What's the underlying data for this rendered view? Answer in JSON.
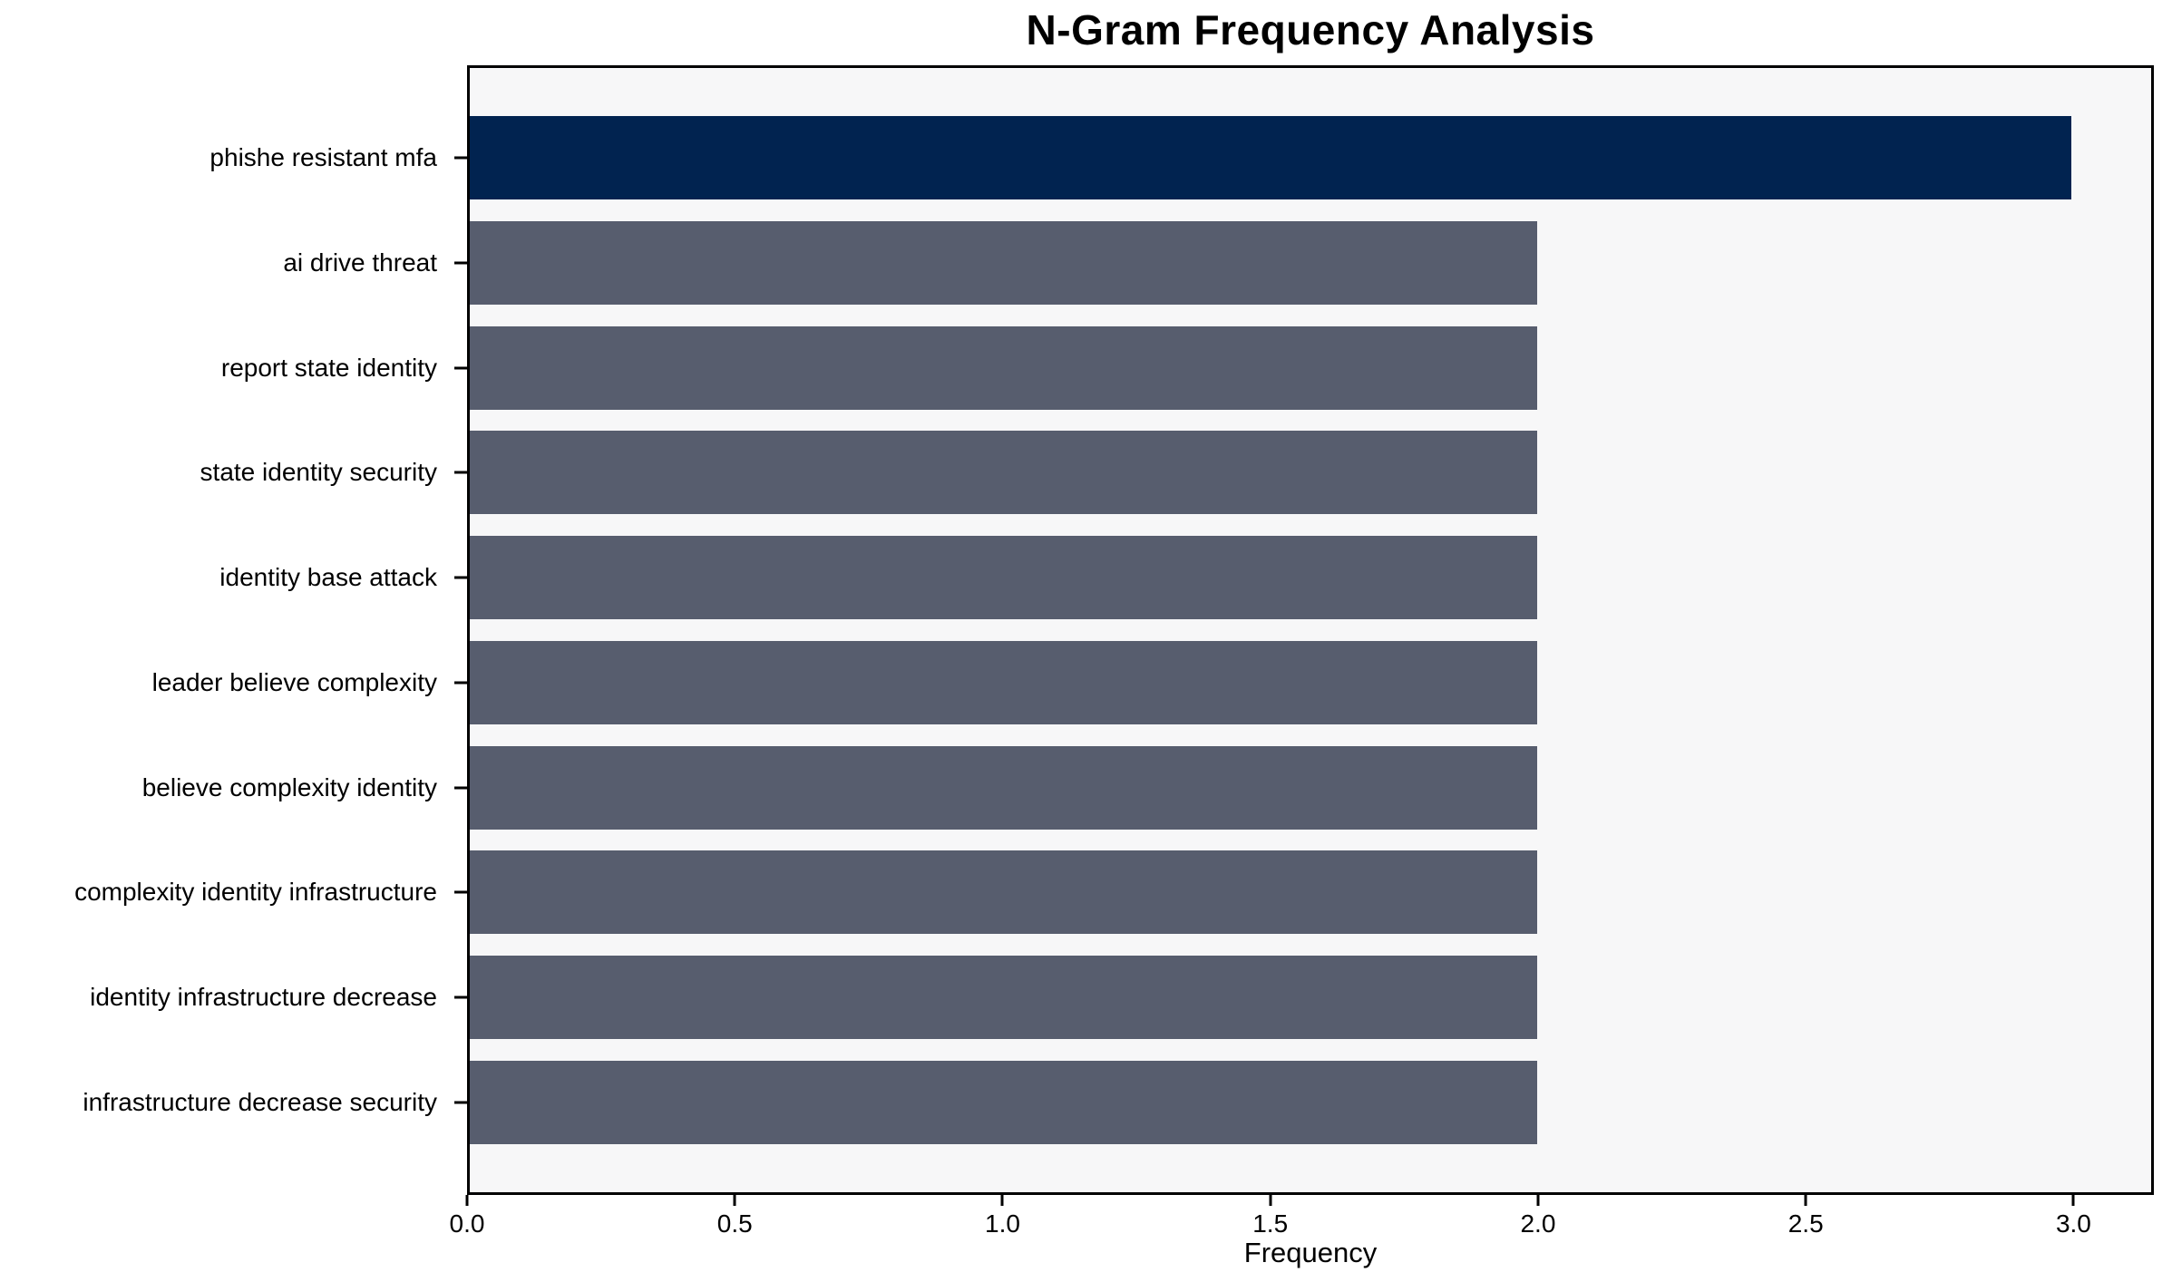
{
  "chart_data": {
    "type": "bar",
    "orientation": "horizontal",
    "title": "N-Gram Frequency Analysis",
    "xlabel": "Frequency",
    "ylabel": "",
    "categories": [
      "phishe resistant mfa",
      "ai drive threat",
      "report state identity",
      "state identity security",
      "identity base attack",
      "leader believe complexity",
      "believe complexity identity",
      "complexity identity infrastructure",
      "identity infrastructure decrease",
      "infrastructure decrease security"
    ],
    "values": [
      3,
      2,
      2,
      2,
      2,
      2,
      2,
      2,
      2,
      2
    ],
    "highlight_index": 0,
    "xlim": [
      0,
      3.15
    ],
    "x_ticks": [
      "0.0",
      "0.5",
      "1.0",
      "1.5",
      "2.0",
      "2.5",
      "3.0"
    ],
    "x_tick_values": [
      0,
      0.5,
      1.0,
      1.5,
      2.0,
      2.5,
      3.0
    ],
    "grid": false,
    "legend_position": "none",
    "colors": {
      "highlight_bar": "#012350",
      "bar": "#575D6E",
      "plot_background": "#F7F7F8",
      "page_background": "#FFFFFF",
      "spine": "#000000",
      "text": "#000000"
    }
  }
}
